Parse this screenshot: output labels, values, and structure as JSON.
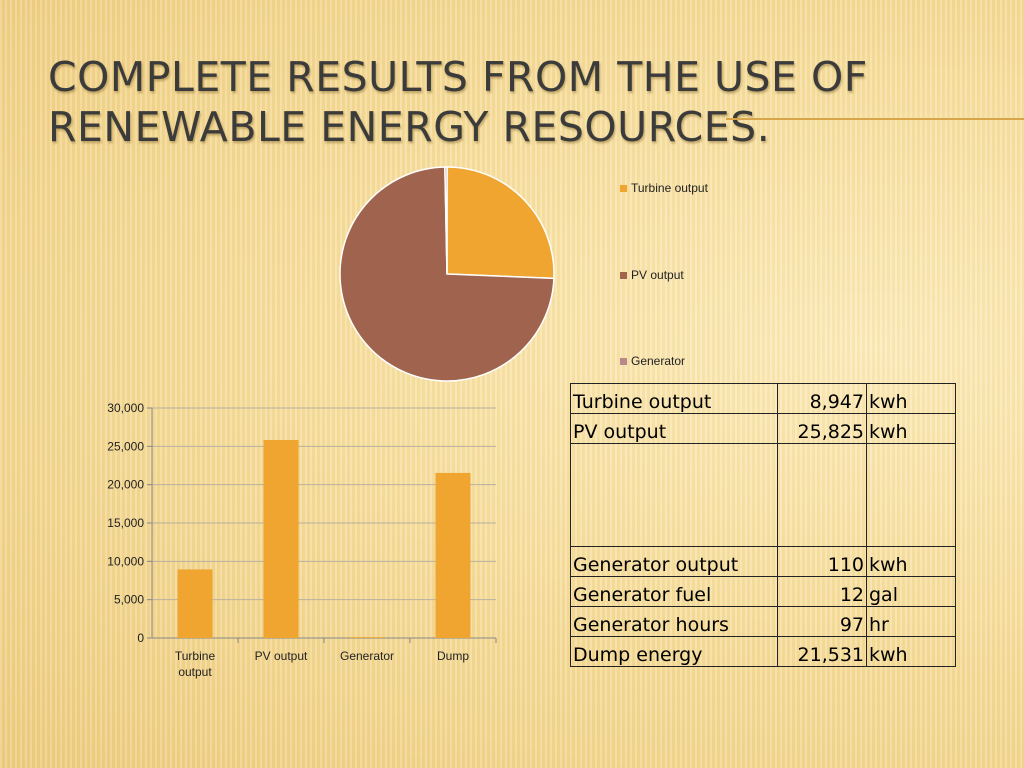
{
  "title": "Complete results from the use of renewable energy resources.",
  "colors": {
    "turbine": "#efa52f",
    "pv": "#a0634e",
    "generator": "#b8898c",
    "grid": "#b8b0a0"
  },
  "chart_data": [
    {
      "type": "pie",
      "categories": [
        "Turbine output",
        "PV output",
        "Generator"
      ],
      "values": [
        8947,
        25825,
        110
      ],
      "legend_position": "right"
    },
    {
      "type": "bar",
      "categories": [
        "Turbine output",
        "PV output",
        "Generator",
        "Dump"
      ],
      "values": [
        8947,
        25825,
        110,
        21531
      ],
      "ylim": [
        0,
        30000
      ],
      "yticks": [
        "0",
        "5,000",
        "10,000",
        "15,000",
        "20,000",
        "25,000",
        "30,000"
      ],
      "grid": true
    }
  ],
  "table": {
    "rows": [
      {
        "label": "Turbine output",
        "value": "8,947",
        "unit": "kwh"
      },
      {
        "label": "PV output",
        "value": "25,825",
        "unit": "kwh"
      },
      {
        "label": "",
        "value": "",
        "unit": ""
      },
      {
        "label": "Generator output",
        "value": "110",
        "unit": "kwh"
      },
      {
        "label": "Generator fuel",
        "value": "12",
        "unit": "gal"
      },
      {
        "label": "Generator hours",
        "value": "97",
        "unit": "hr"
      },
      {
        "label": "Dump energy",
        "value": "21,531",
        "unit": "kwh"
      }
    ]
  }
}
